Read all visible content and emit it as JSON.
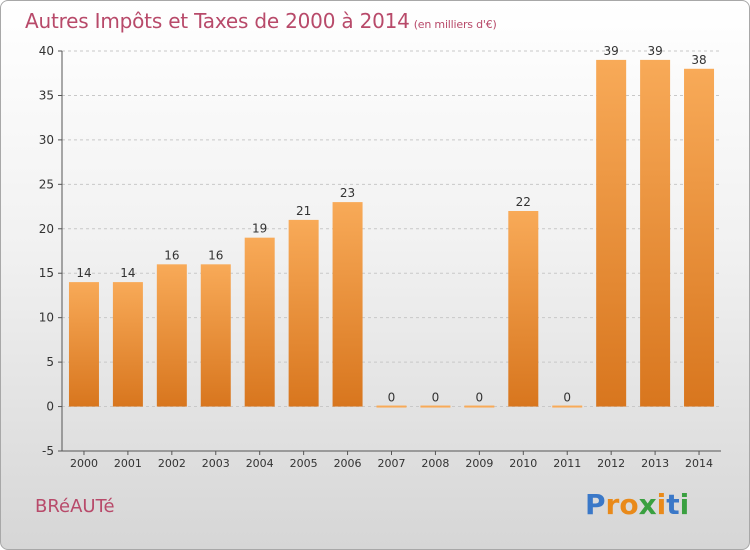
{
  "chart": {
    "title": "Autres Impôts et Taxes de 2000 à 2014",
    "subtitle": "(en milliers d'€)",
    "location": "BRéAUTé",
    "brand": {
      "text": "Proxiti",
      "letters": [
        "P",
        "r",
        "o",
        "x",
        "i",
        "t",
        "i"
      ],
      "colors": [
        "#3a78c8",
        "#e98a1a",
        "#e98a1a",
        "#3aa040",
        "#e98a1a",
        "#3a78c8",
        "#3aa040"
      ]
    }
  },
  "chart_data": {
    "type": "bar",
    "categories": [
      "2000",
      "2001",
      "2002",
      "2003",
      "2004",
      "2005",
      "2006",
      "2007",
      "2008",
      "2009",
      "2010",
      "2011",
      "2012",
      "2013",
      "2014"
    ],
    "values": [
      14,
      14,
      16,
      16,
      19,
      21,
      23,
      0,
      0,
      0,
      22,
      0,
      39,
      39,
      38
    ],
    "data_labels": [
      "14",
      "14",
      "16",
      "16",
      "19",
      "21",
      "23",
      "0",
      "0",
      "0",
      "22",
      "0",
      "39",
      "39",
      "38"
    ],
    "ylim": [
      -5,
      40
    ],
    "yticks": [
      -5,
      0,
      5,
      10,
      15,
      20,
      25,
      30,
      35,
      40
    ],
    "xlabel": "",
    "ylabel": "",
    "grid": "horizontal-dashed",
    "colors": {
      "bar_light": "#f8aa58",
      "bar_dark": "#d8761e",
      "text": "#333333",
      "grid": "#c8c8c8",
      "axis": "#555555"
    }
  }
}
